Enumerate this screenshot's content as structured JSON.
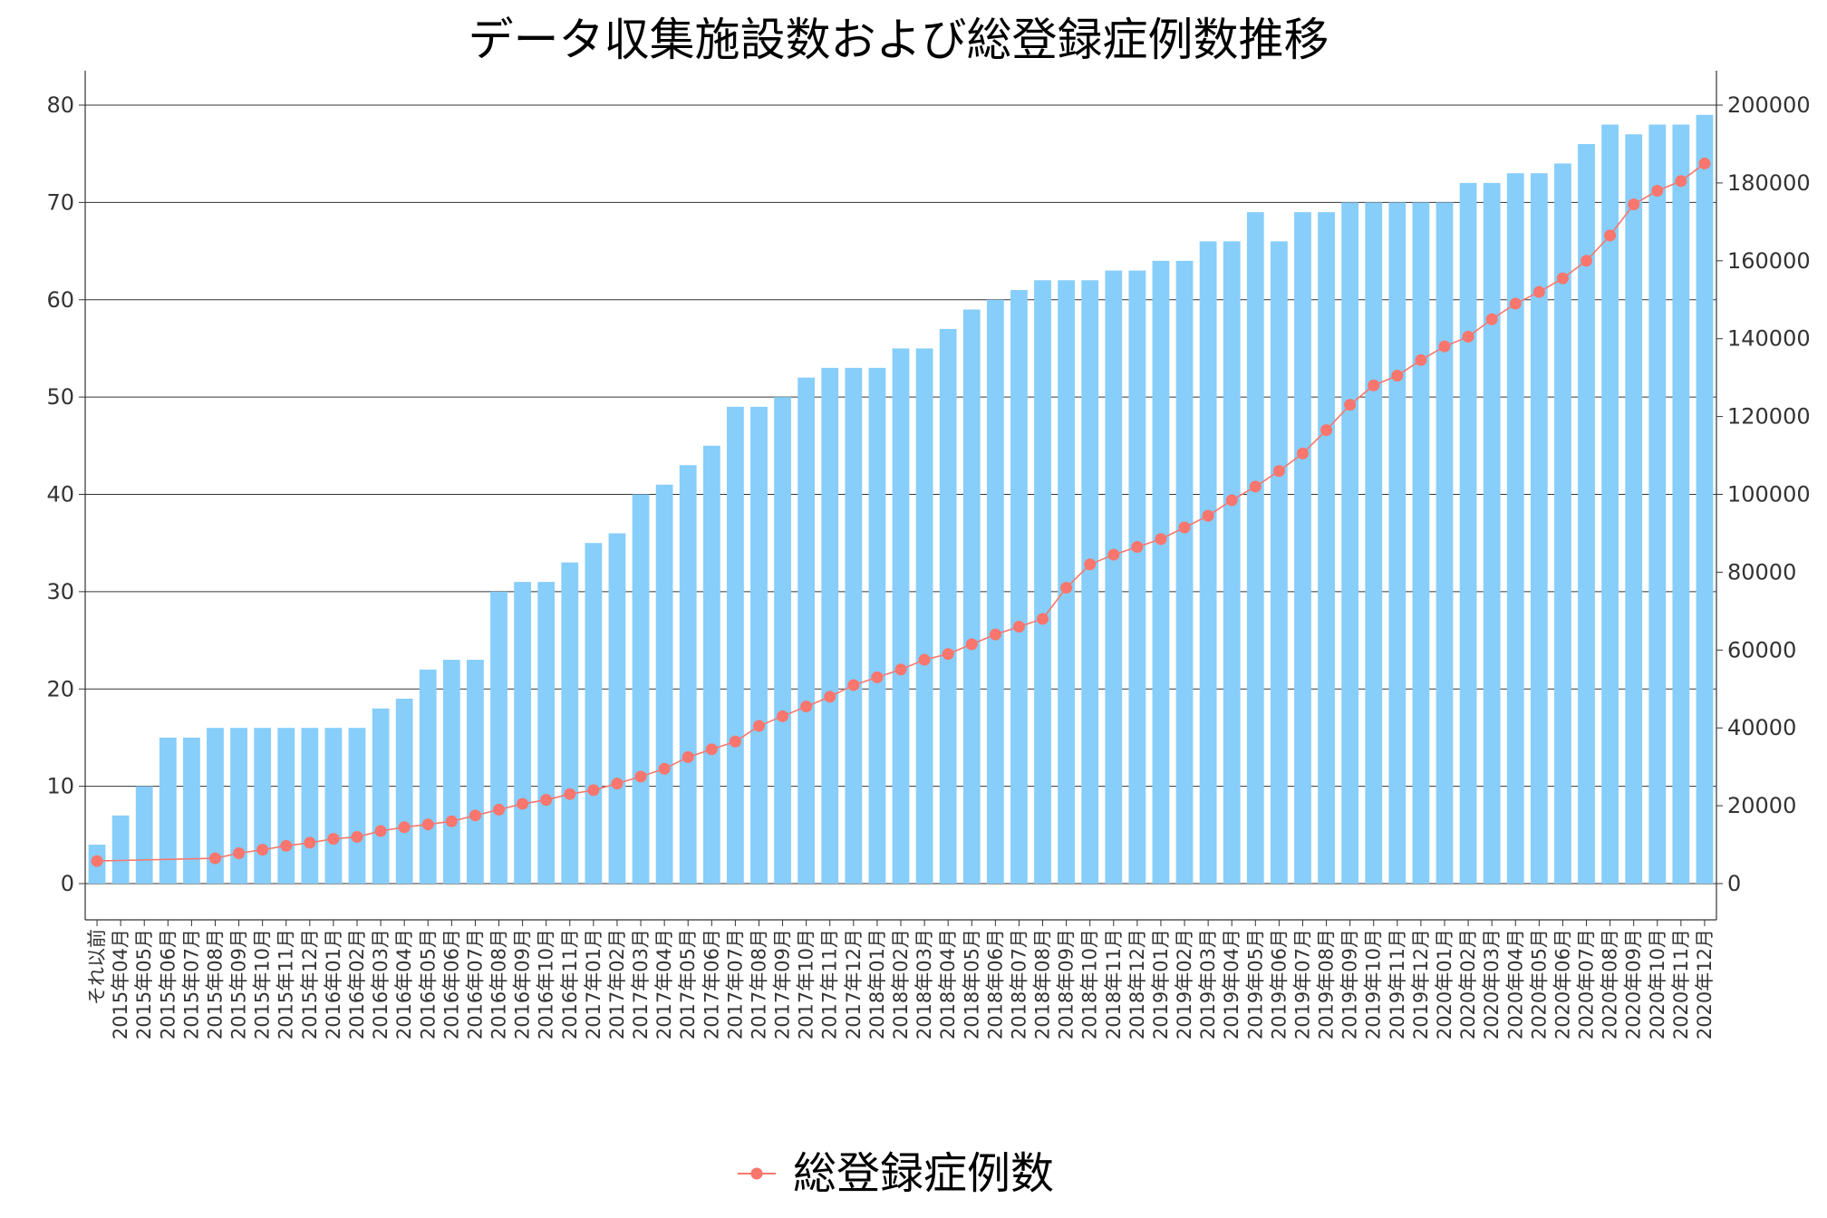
{
  "chart_data": {
    "type": "bar+line",
    "title": "データ収集施設数および総登録症例数推移",
    "xlabel": "",
    "ylabel": "",
    "ylim": [
      0,
      80
    ],
    "y_ticks": [
      0,
      10,
      20,
      30,
      40,
      50,
      60,
      70,
      80
    ],
    "y2lim": [
      0,
      200000
    ],
    "y2_ticks": [
      0,
      20000,
      40000,
      60000,
      80000,
      100000,
      120000,
      140000,
      160000,
      180000,
      200000
    ],
    "grid": true,
    "legend_position": "bottom",
    "categories": [
      "それ以前",
      "2015年04月",
      "2015年05月",
      "2015年06月",
      "2015年07月",
      "2015年08月",
      "2015年09月",
      "2015年10月",
      "2015年11月",
      "2015年12月",
      "2016年01月",
      "2016年02月",
      "2016年03月",
      "2016年04月",
      "2016年05月",
      "2016年06月",
      "2016年07月",
      "2016年08月",
      "2016年09月",
      "2016年10月",
      "2016年11月",
      "2017年01月",
      "2017年02月",
      "2017年03月",
      "2017年04月",
      "2017年05月",
      "2017年06月",
      "2017年07月",
      "2017年08月",
      "2017年09月",
      "2017年10月",
      "2017年11月",
      "2017年12月",
      "2018年01月",
      "2018年02月",
      "2018年03月",
      "2018年04月",
      "2018年05月",
      "2018年06月",
      "2018年07月",
      "2018年08月",
      "2018年09月",
      "2018年10月",
      "2018年11月",
      "2018年12月",
      "2019年01月",
      "2019年02月",
      "2019年03月",
      "2019年04月",
      "2019年05月",
      "2019年06月",
      "2019年07月",
      "2019年08月",
      "2019年09月",
      "2019年10月",
      "2019年11月",
      "2019年12月",
      "2020年01月",
      "2020年02月",
      "2020年03月",
      "2020年04月",
      "2020年05月",
      "2020年06月",
      "2020年07月",
      "2020年08月",
      "2020年09月",
      "2020年10月",
      "2020年11月",
      "2020年12月"
    ],
    "bar_series": {
      "name": "",
      "axis": "left",
      "color": "#87CEFA",
      "values": [
        4,
        7,
        10,
        15,
        15,
        16,
        16,
        16,
        16,
        16,
        16,
        16,
        18,
        19,
        22,
        23,
        23,
        30,
        31,
        31,
        33,
        35,
        36,
        40,
        41,
        43,
        45,
        49,
        49,
        50,
        52,
        53,
        53,
        53,
        55,
        55,
        57,
        59,
        60,
        61,
        62,
        62,
        62,
        63,
        63,
        64,
        64,
        66,
        66,
        69,
        66,
        69,
        69,
        70,
        70,
        70,
        70,
        70,
        72,
        72,
        73,
        73,
        74,
        76,
        78,
        77,
        78,
        78,
        79
      ]
    },
    "line_series": {
      "name": "総登録症例数",
      "axis": "right",
      "color": "#F8766D",
      "x": [
        "それ以前",
        "2015年08月",
        "2015年09月",
        "2015年10月",
        "2015年11月",
        "2015年12月",
        "2016年01月",
        "2016年02月",
        "2016年03月",
        "2016年04月",
        "2016年05月",
        "2016年06月",
        "2016年07月",
        "2016年08月",
        "2016年09月",
        "2016年10月",
        "2016年11月",
        "2017年01月",
        "2017年02月",
        "2017年03月",
        "2017年04月",
        "2017年05月",
        "2017年06月",
        "2017年07月",
        "2017年08月",
        "2017年09月",
        "2017年10月",
        "2017年11月",
        "2017年12月",
        "2018年01月",
        "2018年02月",
        "2018年03月",
        "2018年04月",
        "2018年05月",
        "2018年06月",
        "2018年07月",
        "2018年08月",
        "2018年09月",
        "2018年10月",
        "2018年11月",
        "2018年12月",
        "2019年01月",
        "2019年02月",
        "2019年03月",
        "2019年04月",
        "2019年05月",
        "2019年06月",
        "2019年07月",
        "2019年08月",
        "2019年09月",
        "2019年10月",
        "2019年11月",
        "2019年12月",
        "2020年01月",
        "2020年02月",
        "2020年03月",
        "2020年04月",
        "2020年05月",
        "2020年06月",
        "2020年07月",
        "2020年08月",
        "2020年09月",
        "2020年10月",
        "2020年11月",
        "2020年12月"
      ],
      "values": [
        5800,
        6500,
        7800,
        8700,
        9700,
        10500,
        11500,
        12000,
        13500,
        14500,
        15200,
        16000,
        17500,
        19000,
        20500,
        21500,
        23000,
        24000,
        25700,
        27500,
        29500,
        32500,
        34500,
        36500,
        40500,
        43000,
        45500,
        48000,
        51000,
        53000,
        55000,
        57500,
        59000,
        61500,
        64000,
        66000,
        68000,
        76000,
        82000,
        84500,
        86500,
        88500,
        91500,
        94500,
        98500,
        102000,
        106000,
        110500,
        116500,
        123000,
        128000,
        130500,
        134500,
        138000,
        140500,
        145000,
        149000,
        152000,
        155500,
        160000,
        166500,
        174500,
        178000,
        180500,
        185000
      ]
    }
  }
}
